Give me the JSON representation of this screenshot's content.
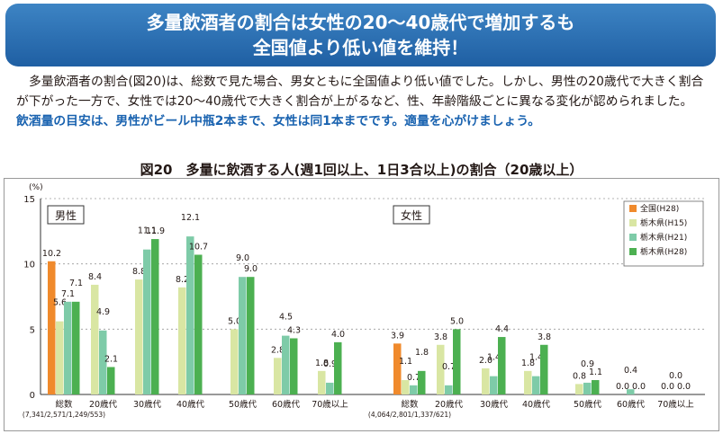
{
  "banner": {
    "line1": "多量飲酒者の割合は女性の20～40歳代で増加するも",
    "line2": "全国値より低い値を維持！"
  },
  "body": {
    "paragraph": "多量飲酒者の割合(図20)は、総数で見た場合、男女ともに全国値より低い値でした。しかし、男性の20歳代で大きく割合が下がった一方で、女性では20～40歳代で大きく割合が上がるなど、性、年齢階級ごとに異なる変化が認められました。",
    "highlight": "飲酒量の目安は、男性がビール中瓶2本まで、女性は同1本までです。適量を心がけましょう。"
  },
  "chart_data": {
    "type": "bar",
    "title": "図20　多量に飲酒する人(週1回以上、1日3合以上)の割合（20歳以上）",
    "ylabel": "(%)",
    "ylim": [
      0,
      15
    ],
    "yticks": [
      0,
      5,
      10,
      15
    ],
    "panels": [
      {
        "label": "男性",
        "categories": [
          "総数",
          "20歳代",
          "30歳代",
          "40歳代",
          "50歳代",
          "60歳代",
          "70歳以上"
        ],
        "sublabel": "(7,341/2,571/1,249/553)",
        "series": [
          {
            "name": "全国(H28)",
            "values": [
              10.2,
              null,
              null,
              null,
              null,
              null,
              null
            ]
          },
          {
            "name": "栃木県(H15)",
            "values": [
              5.6,
              8.4,
              8.8,
              8.2,
              5.0,
              2.8,
              1.8
            ]
          },
          {
            "name": "栃木県(H21)",
            "values": [
              7.1,
              4.9,
              11.1,
              12.1,
              9.0,
              4.5,
              0.9
            ]
          },
          {
            "name": "栃木県(H28)",
            "values": [
              7.1,
              2.1,
              11.9,
              10.7,
              9.0,
              4.3,
              4.0
            ]
          }
        ]
      },
      {
        "label": "女性",
        "categories": [
          "総数",
          "20歳代",
          "30歳代",
          "40歳代",
          "50歳代",
          "60歳代",
          "70歳以上"
        ],
        "sublabel": "(4,064/2,801/1,337/621)",
        "series": [
          {
            "name": "全国(H28)",
            "values": [
              3.9,
              null,
              null,
              null,
              null,
              null,
              null
            ]
          },
          {
            "name": "栃木県(H15)",
            "values": [
              1.1,
              3.8,
              2.0,
              1.8,
              0.8,
              0.0,
              0.0
            ]
          },
          {
            "name": "栃木県(H21)",
            "values": [
              0.7,
              0.7,
              1.4,
              1.4,
              0.9,
              0.4,
              0.0
            ]
          },
          {
            "name": "栃木県(H28)",
            "values": [
              1.8,
              5.0,
              4.4,
              3.8,
              1.1,
              0.0,
              0.0
            ]
          }
        ]
      }
    ],
    "legend": {
      "placement": "top-right",
      "items": [
        {
          "name": "全国(H28)",
          "color": "#f08a2c"
        },
        {
          "name": "栃木県(H15)",
          "color": "#d9e6a3"
        },
        {
          "name": "栃木県(H21)",
          "color": "#7ecba8"
        },
        {
          "name": "栃木県(H28)",
          "color": "#4cb051"
        }
      ]
    },
    "grid": true
  }
}
